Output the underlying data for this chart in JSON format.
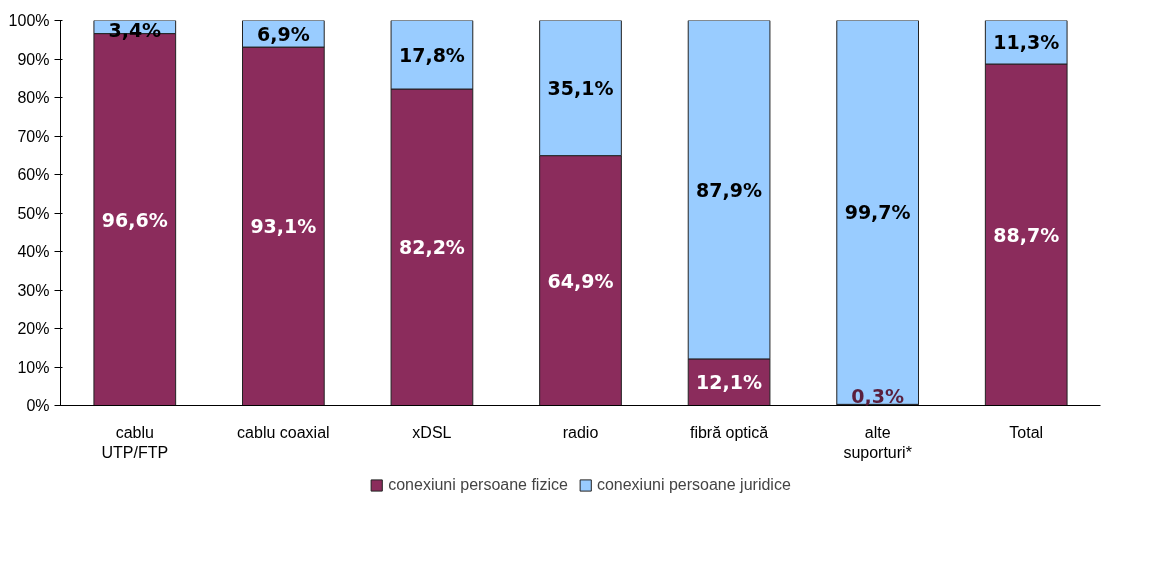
{
  "chart_data": {
    "type": "bar",
    "stacked": true,
    "categories": [
      "cablu\nUTP/FTP",
      "cablu coaxial",
      "xDSL",
      "radio",
      "fibră optică",
      "alte\nsuporturi*",
      "Total"
    ],
    "series": [
      {
        "name": "conexiuni persoane fizice",
        "color": "#8b2c5c",
        "values": [
          96.6,
          93.1,
          82.2,
          64.9,
          12.1,
          0.3,
          88.7
        ],
        "value_labels": [
          "96,6%",
          "93,1%",
          "82,2%",
          "64,9%",
          "12,1%",
          "0,3%",
          "88,7%"
        ]
      },
      {
        "name": "conexiuni persoane juridice",
        "color": "#99ccff",
        "values": [
          3.4,
          6.9,
          17.8,
          35.1,
          87.9,
          99.7,
          11.3
        ],
        "value_labels": [
          "3,4%",
          "6,9%",
          "17,8%",
          "35,1%",
          "87,9%",
          "99,7%",
          "11,3%"
        ]
      }
    ],
    "ylim": [
      0,
      100
    ],
    "yticks": [
      {
        "value": 0,
        "label": "0%"
      },
      {
        "value": 10,
        "label": "10%"
      },
      {
        "value": 20,
        "label": "20%"
      },
      {
        "value": 30,
        "label": "30%"
      },
      {
        "value": 40,
        "label": "40%"
      },
      {
        "value": 50,
        "label": "50%"
      },
      {
        "value": 60,
        "label": "60%"
      },
      {
        "value": 70,
        "label": "70%"
      },
      {
        "value": 80,
        "label": "80%"
      },
      {
        "value": 90,
        "label": "90%"
      },
      {
        "value": 100,
        "label": "100%"
      }
    ],
    "grid": false,
    "legend": "bottom"
  }
}
